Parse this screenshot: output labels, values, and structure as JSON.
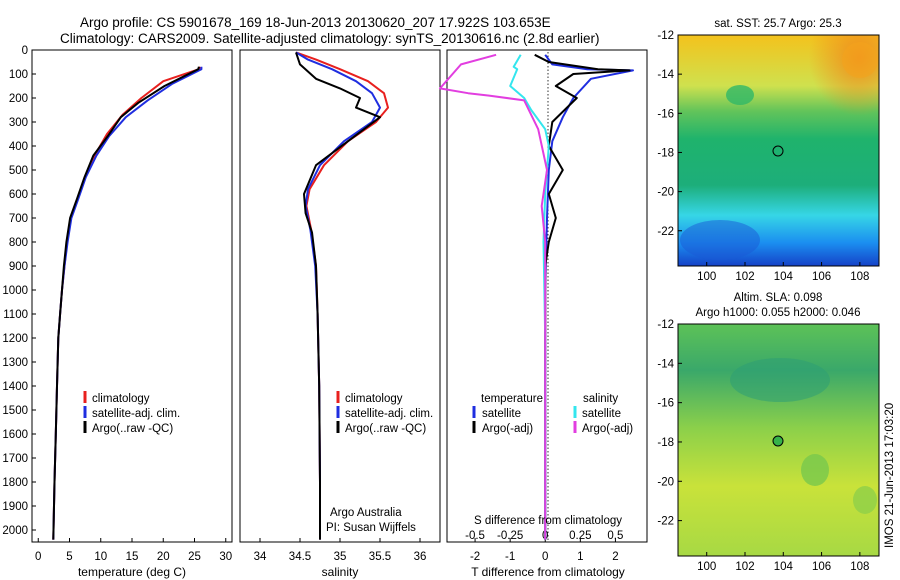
{
  "header": {
    "line1": "Argo profile: CS 5901678_169 18-Jun-2013 20130620_207 17.922S 103.653E",
    "line2": "Climatology: CARS2009. Satellite-adjusted climatology: synTS_20130616.nc (2.8d earlier)"
  },
  "colors": {
    "clim": "#e8201e",
    "sat": "#1f2ee0",
    "argo": "#000000",
    "sal_sat": "#33e6ee",
    "sal_argo": "#e23ee0"
  },
  "chart_data": [
    {
      "type": "line",
      "name": "temperature",
      "xlabel": "temperature (deg C)",
      "xlim": [
        -1,
        31
      ],
      "ylim": [
        0,
        2050
      ],
      "xticks": [
        "0",
        "5",
        "10",
        "15",
        "20",
        "25",
        "30"
      ],
      "xtick_values": [
        0,
        5,
        10,
        15,
        20,
        25,
        30
      ],
      "yticks": [
        "0",
        "100",
        "200",
        "300",
        "400",
        "500",
        "600",
        "700",
        "800",
        "900",
        "1000",
        "1100",
        "1200",
        "1300",
        "1400",
        "1500",
        "1600",
        "1700",
        "1800",
        "1900",
        "2000"
      ],
      "ytick_values": [
        0,
        100,
        200,
        300,
        400,
        500,
        600,
        700,
        800,
        900,
        1000,
        1100,
        1200,
        1300,
        1400,
        1500,
        1600,
        1700,
        1800,
        1900,
        2000
      ],
      "legend": [
        "climatology",
        "satellite-adj. clim.",
        "Argo(..raw -QC)"
      ],
      "series": [
        {
          "name": "climatology",
          "key": "clim",
          "x": [
            25.9,
            25.7,
            20,
            16.5,
            13.5,
            11,
            9,
            7.5,
            6.3,
            5.2,
            4.6,
            4.2,
            3.8,
            3.5,
            3.2,
            3,
            2.8,
            2.6,
            2.4
          ],
          "y": [
            70,
            80,
            130,
            200,
            270,
            350,
            440,
            530,
            620,
            700,
            800,
            900,
            1000,
            1100,
            1200,
            1400,
            1600,
            1800,
            2040
          ]
        },
        {
          "name": "satellite-adj. clim.",
          "key": "sat",
          "x": [
            26.1,
            26.1,
            21.5,
            17.5,
            14,
            11.3,
            9.3,
            7.6,
            6.4,
            5.3,
            4.7,
            4.2,
            3.8,
            3.5,
            3.2,
            3,
            2.8,
            2.6,
            2.4
          ],
          "y": [
            70,
            80,
            140,
            210,
            280,
            360,
            440,
            530,
            620,
            700,
            800,
            900,
            1000,
            1100,
            1200,
            1400,
            1600,
            1800,
            2040
          ]
        },
        {
          "name": "Argo(..raw -QC)",
          "key": "argo",
          "x": [
            25.7,
            25.6,
            20.2,
            16,
            13.2,
            11.1,
            8.8,
            7.4,
            6.2,
            5.1,
            4.5,
            4.1,
            3.8,
            3.5,
            3.2,
            3,
            2.8,
            2.6,
            2.4
          ],
          "y": [
            70,
            80,
            150,
            220,
            280,
            360,
            440,
            530,
            620,
            700,
            800,
            900,
            1000,
            1100,
            1200,
            1400,
            1600,
            1800,
            2040
          ]
        }
      ]
    },
    {
      "type": "line",
      "name": "salinity",
      "xlabel": "salinity",
      "xlim": [
        33.75,
        36.25
      ],
      "ylim": [
        0,
        2050
      ],
      "xticks": [
        "34",
        "34.5",
        "35",
        "35.5",
        "36"
      ],
      "xtick_values": [
        34,
        34.5,
        35,
        35.5,
        36
      ],
      "legend": [
        "climatology",
        "satellite-adj. clim.",
        "Argo(..raw -QC)"
      ],
      "annotation": [
        "Argo Australia",
        "PI: Susan Wijffels"
      ],
      "series": [
        {
          "name": "climatology",
          "key": "clim",
          "x": [
            34.45,
            34.7,
            35.0,
            35.35,
            35.55,
            35.6,
            35.45,
            35.1,
            34.8,
            34.62,
            34.58,
            34.64,
            34.7,
            34.72,
            34.74,
            34.75,
            34.75
          ],
          "y": [
            10,
            40,
            80,
            130,
            180,
            240,
            300,
            380,
            480,
            580,
            650,
            750,
            900,
            1100,
            1400,
            1800,
            2040
          ]
        },
        {
          "name": "satellite-adj. clim.",
          "key": "sat",
          "x": [
            34.45,
            34.6,
            34.9,
            35.2,
            35.4,
            35.5,
            35.4,
            35.05,
            34.75,
            34.6,
            34.57,
            34.63,
            34.69,
            34.72,
            34.74,
            34.75,
            34.75
          ],
          "y": [
            10,
            40,
            80,
            130,
            180,
            240,
            300,
            380,
            480,
            580,
            650,
            750,
            900,
            1100,
            1400,
            1800,
            2040
          ]
        },
        {
          "name": "Argo(..raw -QC)",
          "key": "argo",
          "x": [
            34.45,
            34.5,
            34.7,
            35.0,
            35.25,
            35.2,
            35.5,
            35.3,
            34.7,
            34.55,
            34.57,
            34.65,
            34.7,
            34.72,
            34.74,
            34.75,
            34.75
          ],
          "y": [
            10,
            60,
            120,
            160,
            200,
            240,
            280,
            330,
            480,
            600,
            680,
            760,
            900,
            1100,
            1400,
            1800,
            2040
          ]
        }
      ]
    },
    {
      "type": "line",
      "name": "difference",
      "xlabel": "T difference from climatology",
      "xlabel_top": "S difference from climatology",
      "xlim": [
        -2.8,
        2.9
      ],
      "ylim": [
        0,
        2050
      ],
      "xticks": [
        "-2",
        "-1",
        "0",
        "1",
        "2"
      ],
      "xtick_values": [
        -2,
        -1,
        0,
        1,
        2
      ],
      "xticks_top": [
        "-0.5",
        "-0.25",
        "0",
        "0.25",
        "0.5"
      ],
      "xtick_top_values": [
        -2,
        -1,
        0,
        1,
        2
      ],
      "legend_titles": [
        "temperature",
        "salinity"
      ],
      "legend": [
        "satellite",
        "Argo(-adj)",
        "satellite",
        "Argo(-adj)"
      ],
      "series": [
        {
          "name": "T satellite",
          "key": "sat",
          "x": [
            0,
            0.2,
            1.2,
            2.5,
            1.3,
            0.8,
            0.5,
            0.2,
            0.1,
            0.05,
            0,
            0
          ],
          "y": [
            20,
            60,
            80,
            85,
            120,
            200,
            280,
            380,
            500,
            700,
            1000,
            2040
          ]
        },
        {
          "name": "T Argo(-adj)",
          "key": "argo",
          "x": [
            -0.3,
            0.1,
            1.5,
            2.4,
            0.8,
            0.3,
            0.9,
            0.2,
            0.1,
            0.5,
            0.1,
            0.3,
            0.1,
            0,
            0
          ],
          "y": [
            20,
            50,
            80,
            85,
            100,
            150,
            200,
            300,
            400,
            500,
            600,
            700,
            800,
            900,
            2040
          ]
        },
        {
          "name": "S satellite",
          "key": "sal_sat",
          "x": [
            -0.7,
            -0.9,
            -0.8,
            -1.0,
            -0.6,
            -0.4,
            0,
            0.1,
            0.05,
            0,
            -0.05,
            0,
            0
          ],
          "y": [
            20,
            70,
            80,
            150,
            200,
            250,
            330,
            400,
            500,
            600,
            800,
            1200,
            2040
          ]
        },
        {
          "name": "S Argo(-adj)",
          "key": "sal_argo",
          "x": [
            -1.4,
            -2.4,
            -3.0,
            -2.2,
            -1.6,
            -0.6,
            -0.2,
            0.05,
            -0.1,
            0,
            0
          ],
          "y": [
            20,
            60,
            160,
            180,
            190,
            210,
            330,
            500,
            650,
            800,
            2040
          ]
        }
      ]
    }
  ],
  "maps": {
    "sst": {
      "title": "sat. SST: 25.7 Argo: 25.3",
      "yticks": [
        "-12",
        "-14",
        "-16",
        "-18",
        "-20",
        "-22"
      ],
      "xticks": [
        "100",
        "102",
        "104",
        "106",
        "108"
      ]
    },
    "sla": {
      "title1": "Altim. SLA: 0.098",
      "title2": "Argo h1000: 0.055 h2000: 0.046",
      "yticks": [
        "-12",
        "-14",
        "-16",
        "-18",
        "-20",
        "-22"
      ],
      "xticks": [
        "100",
        "102",
        "104",
        "106",
        "108"
      ]
    }
  },
  "footer": "IMOS 21-Jun-2013 17:03:20"
}
